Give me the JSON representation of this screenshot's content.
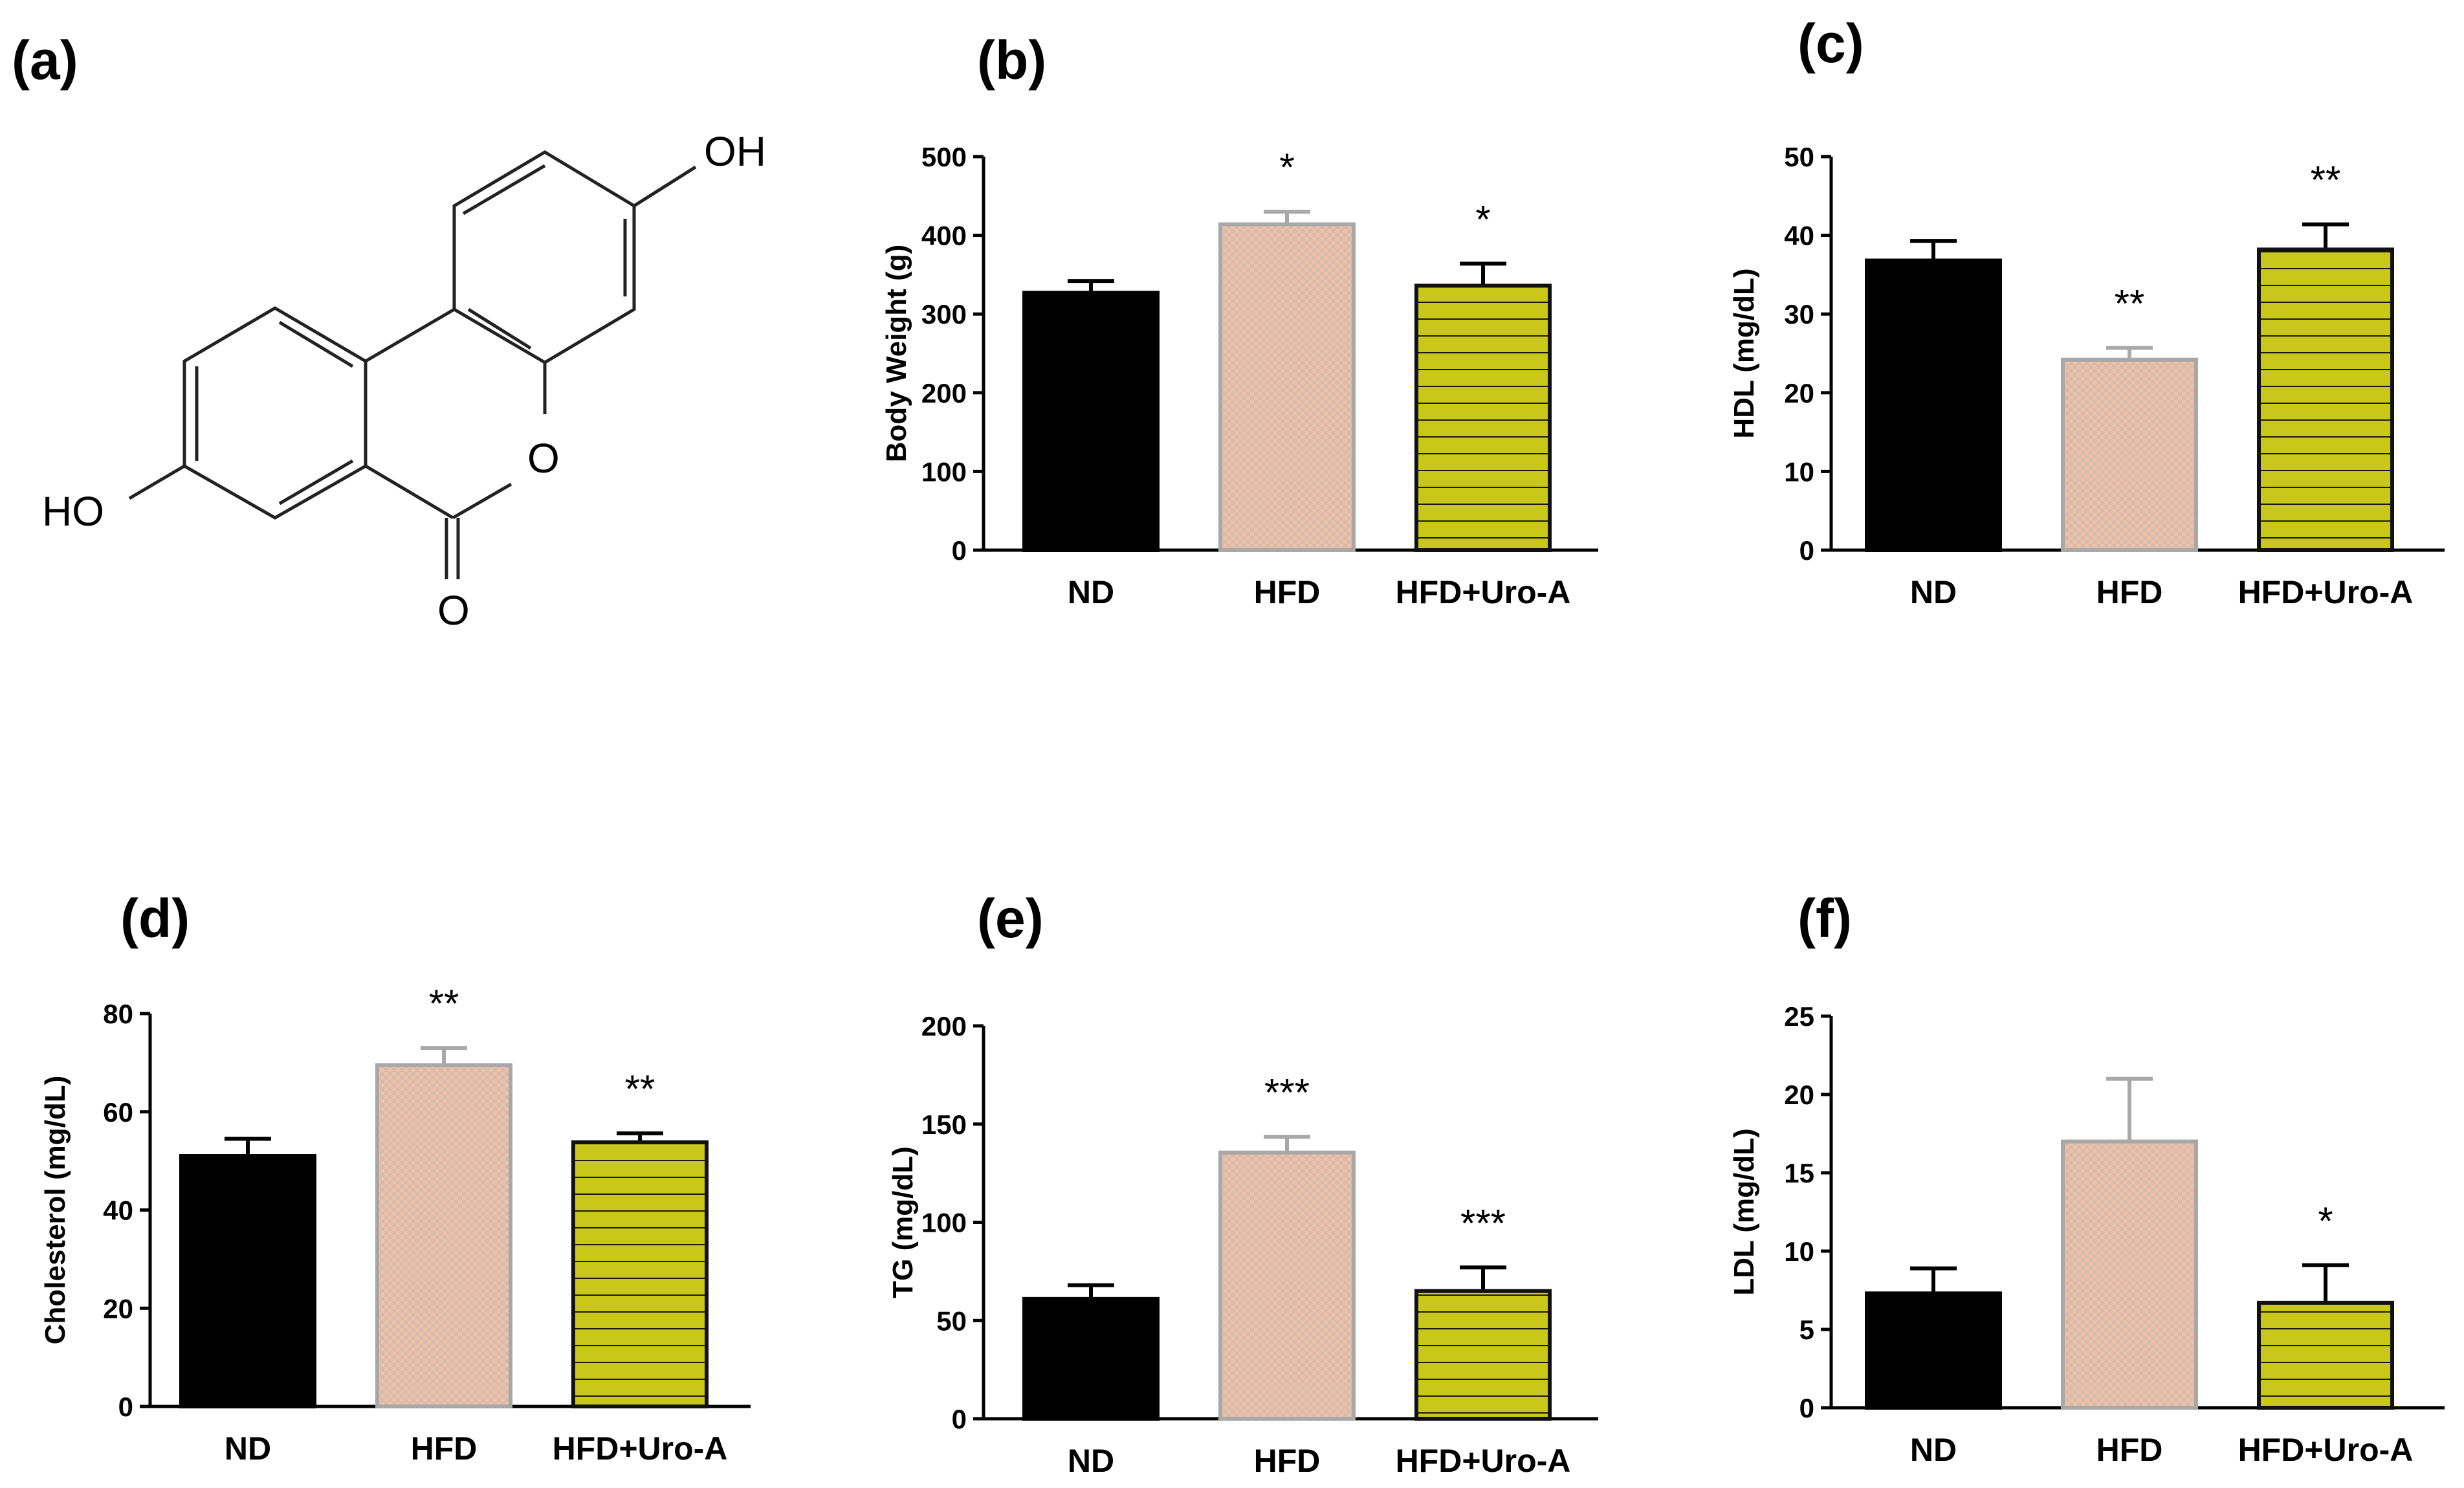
{
  "figure": {
    "panel_a": {
      "label": "(a)",
      "molecule": {
        "oh_top": "OH",
        "oh_left": "HO",
        "ring_o": "O",
        "carbonyl_o": "O"
      }
    }
  },
  "colors": {
    "ND": "#000000",
    "HFD_fill": "#f2bfa3",
    "HFD_check": "#b9b9b9",
    "HFD_border": "#a8a8a8",
    "UroA_fill": "#c9c81a",
    "UroA_lines": "#1a1a00",
    "axis": "#000000"
  },
  "chart_data": [
    {
      "id": "b",
      "label": "(b)",
      "type": "bar",
      "title": "",
      "xlabel": "",
      "ylabel": "Body Weight (g)",
      "categories": [
        "ND",
        "HFD",
        "HFD+Uro-A"
      ],
      "values": [
        327,
        414,
        336
      ],
      "errors": [
        15,
        16,
        28
      ],
      "significance": [
        "",
        "*",
        "*"
      ],
      "ylim": [
        0,
        500
      ],
      "yticks": [
        0,
        100,
        200,
        300,
        400,
        500
      ]
    },
    {
      "id": "c",
      "label": "(c)",
      "type": "bar",
      "title": "",
      "xlabel": "",
      "ylabel": "HDL (mg/dL)",
      "categories": [
        "ND",
        "HFD",
        "HFD+Uro-A"
      ],
      "values": [
        36.8,
        24.2,
        38.2
      ],
      "errors": [
        2.5,
        1.5,
        3.2
      ],
      "significance": [
        "",
        "**",
        "**"
      ],
      "ylim": [
        0,
        50
      ],
      "yticks": [
        0,
        10,
        20,
        30,
        40,
        50
      ]
    },
    {
      "id": "d",
      "label": "(d)",
      "type": "bar",
      "title": "",
      "xlabel": "",
      "ylabel": "Cholesterol (mg/dL)",
      "categories": [
        "ND",
        "HFD",
        "HFD+Uro-A"
      ],
      "values": [
        51,
        69.5,
        53.8
      ],
      "errors": [
        3.5,
        3.5,
        1.8
      ],
      "significance": [
        "",
        "**",
        "**"
      ],
      "ylim": [
        0,
        80
      ],
      "yticks": [
        0,
        20,
        40,
        60,
        80
      ]
    },
    {
      "id": "e",
      "label": "(e)",
      "type": "bar",
      "title": "",
      "xlabel": "",
      "ylabel": "TG (mg/dL)",
      "categories": [
        "ND",
        "HFD",
        "HFD+Uro-A"
      ],
      "values": [
        61,
        135.5,
        65
      ],
      "errors": [
        7,
        8,
        12
      ],
      "significance": [
        "",
        "***",
        "***"
      ],
      "ylim": [
        0,
        200
      ],
      "yticks": [
        0,
        50,
        100,
        150,
        200
      ]
    },
    {
      "id": "f",
      "label": "(f)",
      "type": "bar",
      "title": "",
      "xlabel": "",
      "ylabel": "LDL (mg/dL)",
      "categories": [
        "ND",
        "HFD",
        "HFD+Uro-A"
      ],
      "values": [
        7.3,
        17,
        6.7
      ],
      "errors": [
        1.6,
        4,
        2.4
      ],
      "significance": [
        "",
        "",
        "*"
      ],
      "ylim": [
        0,
        25
      ],
      "yticks": [
        0,
        5,
        10,
        15,
        20,
        25
      ]
    }
  ]
}
